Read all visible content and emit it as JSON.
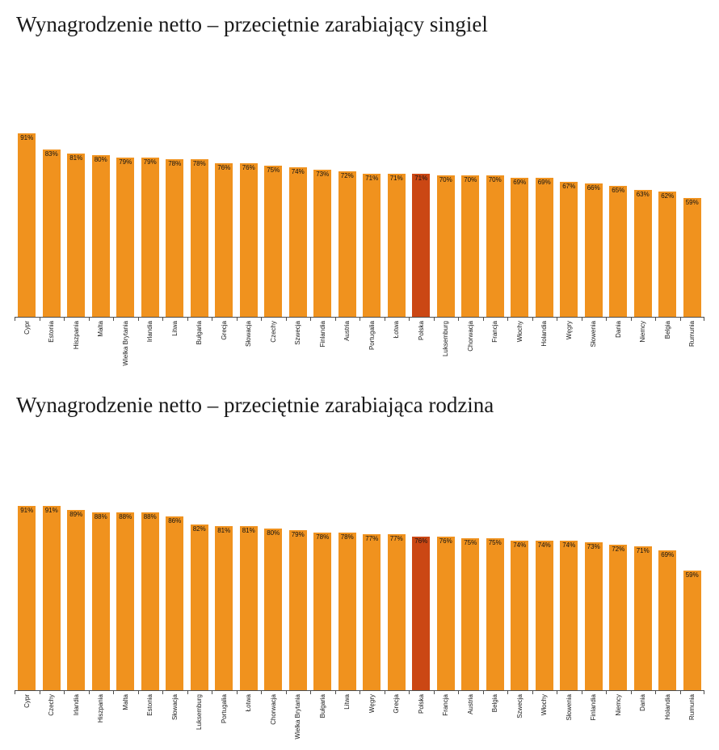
{
  "page": {
    "background": "#ffffff"
  },
  "chart_data": [
    {
      "type": "bar",
      "title": "Wynagrodzenie netto – przeciętnie zarabiający singiel",
      "xlabel": "",
      "ylabel": "",
      "ymax": 100,
      "grid": false,
      "legend": "none",
      "value_suffix": "%",
      "bar_color": "#F0921E",
      "highlight_color": "#CB4714",
      "highlight_category": "Polska",
      "categories": [
        "Cypr",
        "Estonia",
        "Hiszpania",
        "Malta",
        "Wielka Brytania",
        "Irlandia",
        "Litwa",
        "Bułgaria",
        "Grecja",
        "Słowacja",
        "Czechy",
        "Szwecja",
        "Finlandia",
        "Austria",
        "Portugalia",
        "Łotwa",
        "Polska",
        "Luksemburg",
        "Chorwacja",
        "Francja",
        "Włochy",
        "Holandia",
        "Węgry",
        "Słowenia",
        "Dania",
        "Niemcy",
        "Belgia",
        "Rumunia"
      ],
      "values": [
        91,
        83,
        81,
        80,
        79,
        79,
        78,
        78,
        76,
        76,
        75,
        74,
        73,
        72,
        71,
        71,
        71,
        70,
        70,
        70,
        69,
        69,
        67,
        66,
        65,
        63,
        62,
        59
      ]
    },
    {
      "type": "bar",
      "title": "Wynagrodzenie netto – przeciętnie zarabiająca rodzina",
      "xlabel": "",
      "ylabel": "",
      "ymax": 100,
      "grid": false,
      "legend": "none",
      "value_suffix": "%",
      "bar_color": "#F0921E",
      "highlight_color": "#CB4714",
      "highlight_category": "Polska",
      "categories": [
        "Cypr",
        "Czechy",
        "Irlandia",
        "Hiszpania",
        "Malta",
        "Estonia",
        "Słowacja",
        "Luksemburg",
        "Portugalia",
        "Łotwa",
        "Chorwacja",
        "Wielka Brytania",
        "Bułgaria",
        "Litwa",
        "Węgry",
        "Grecja",
        "Polska",
        "Francja",
        "Austria",
        "Belgia",
        "Szwecja",
        "Włochy",
        "Słowenia",
        "Finlandia",
        "Niemcy",
        "Dania",
        "Holandia",
        "Rumunia"
      ],
      "values": [
        91,
        91,
        89,
        88,
        88,
        88,
        86,
        82,
        81,
        81,
        80,
        79,
        78,
        78,
        77,
        77,
        76,
        76,
        75,
        75,
        74,
        74,
        74,
        73,
        72,
        71,
        69,
        59
      ]
    }
  ]
}
